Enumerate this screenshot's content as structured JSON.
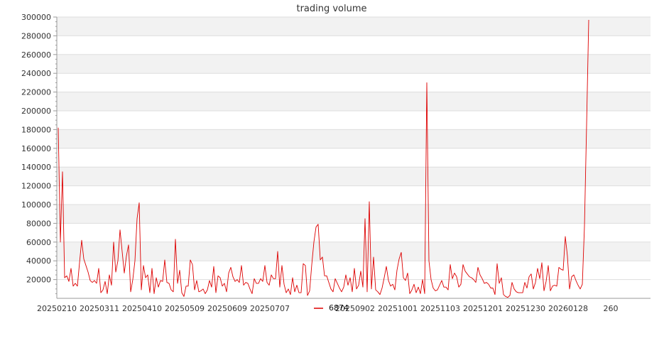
{
  "chart_data": {
    "type": "line",
    "title": "trading volume",
    "xlabel": "",
    "ylabel": "",
    "ylim": [
      0,
      300000
    ],
    "y_ticks": [
      20000,
      40000,
      60000,
      80000,
      100000,
      120000,
      140000,
      160000,
      180000,
      200000,
      220000,
      240000,
      260000,
      280000,
      300000
    ],
    "y_tick_labels": [
      "20000",
      "40000",
      "60000",
      "80000",
      "100000",
      "120000",
      "140000",
      "160000",
      "180000",
      "200000",
      "220000",
      "240000",
      "260000",
      "280000",
      "300000"
    ],
    "x_tick_labels": [
      "20250210",
      "20250311",
      "20250410",
      "20250509",
      "20250609",
      "20250707",
      "20250902",
      "20251001",
      "20251103",
      "20251201",
      "20251230",
      "20260128",
      "260"
    ],
    "x_tick_index": [
      0,
      20,
      40,
      60,
      80,
      100,
      140,
      160,
      180,
      200,
      220,
      240,
      260
    ],
    "legend": {
      "position": "bottom-center",
      "entries": [
        "6874"
      ]
    },
    "grid": "horizontal bands",
    "colors": {
      "series": "#dd0000",
      "band": "#f2f2f2",
      "grid": "#dddddd",
      "axis": "#999999"
    },
    "series": [
      {
        "name": "6874",
        "values": [
          182000,
          60000,
          135000,
          22000,
          24000,
          18000,
          32000,
          13000,
          16000,
          13000,
          38000,
          62000,
          42000,
          35000,
          28000,
          19000,
          17000,
          19000,
          16000,
          32000,
          6000,
          9000,
          18000,
          5000,
          25000,
          14000,
          60000,
          28000,
          40000,
          73000,
          50000,
          27000,
          45000,
          57000,
          7000,
          20000,
          40000,
          85000,
          102000,
          9000,
          35000,
          22000,
          25000,
          6000,
          32000,
          5000,
          22000,
          12000,
          19000,
          18000,
          41000,
          17000,
          16000,
          9000,
          7000,
          63000,
          16000,
          30000,
          6000,
          2000,
          13000,
          13000,
          41000,
          36000,
          9000,
          19000,
          7000,
          8000,
          10000,
          5000,
          9000,
          19000,
          12000,
          34000,
          6000,
          24000,
          22000,
          13000,
          16000,
          7000,
          27000,
          33000,
          23000,
          18000,
          20000,
          17000,
          35000,
          14000,
          17000,
          16000,
          10000,
          5000,
          21000,
          16000,
          16000,
          21000,
          18000,
          35000,
          17000,
          14000,
          25000,
          21000,
          21000,
          50000,
          12000,
          35000,
          15000,
          6000,
          10000,
          4000,
          22000,
          7000,
          14000,
          6000,
          6000,
          37000,
          35000,
          3000,
          8000,
          36000,
          60000,
          76000,
          79000,
          41000,
          44000,
          24000,
          24000,
          17000,
          10000,
          7000,
          21000,
          16000,
          11000,
          7000,
          12000,
          25000,
          14000,
          22000,
          7000,
          32000,
          10000,
          14000,
          29000,
          12000,
          85000,
          7000,
          103000,
          10000,
          44000,
          9000,
          7000,
          4000,
          11000,
          22000,
          34000,
          19000,
          13000,
          15000,
          9000,
          30000,
          42000,
          49000,
          22000,
          19000,
          27000,
          5000,
          9000,
          15000,
          6000,
          12000,
          5000,
          20000,
          5000,
          230000,
          40000,
          20000,
          11000,
          8000,
          9000,
          14000,
          19000,
          12000,
          12000,
          9000,
          36000,
          21000,
          27000,
          23000,
          12000,
          15000,
          36000,
          29000,
          26000,
          23000,
          22000,
          20000,
          17000,
          33000,
          25000,
          21000,
          16000,
          17000,
          15000,
          11000,
          11000,
          4000,
          37000,
          16000,
          22000,
          4000,
          2000,
          1000,
          3000,
          17000,
          10000,
          7000,
          6000,
          6000,
          6000,
          17000,
          11000,
          23000,
          26000,
          10000,
          17000,
          32000,
          21000,
          38000,
          8000,
          18000,
          35000,
          8000,
          13000,
          14000,
          13000,
          33000,
          31000,
          30000,
          66000,
          45000,
          10000,
          23000,
          25000,
          19000,
          14000,
          10000,
          15000,
          77000,
          185000,
          297000
        ]
      }
    ]
  }
}
